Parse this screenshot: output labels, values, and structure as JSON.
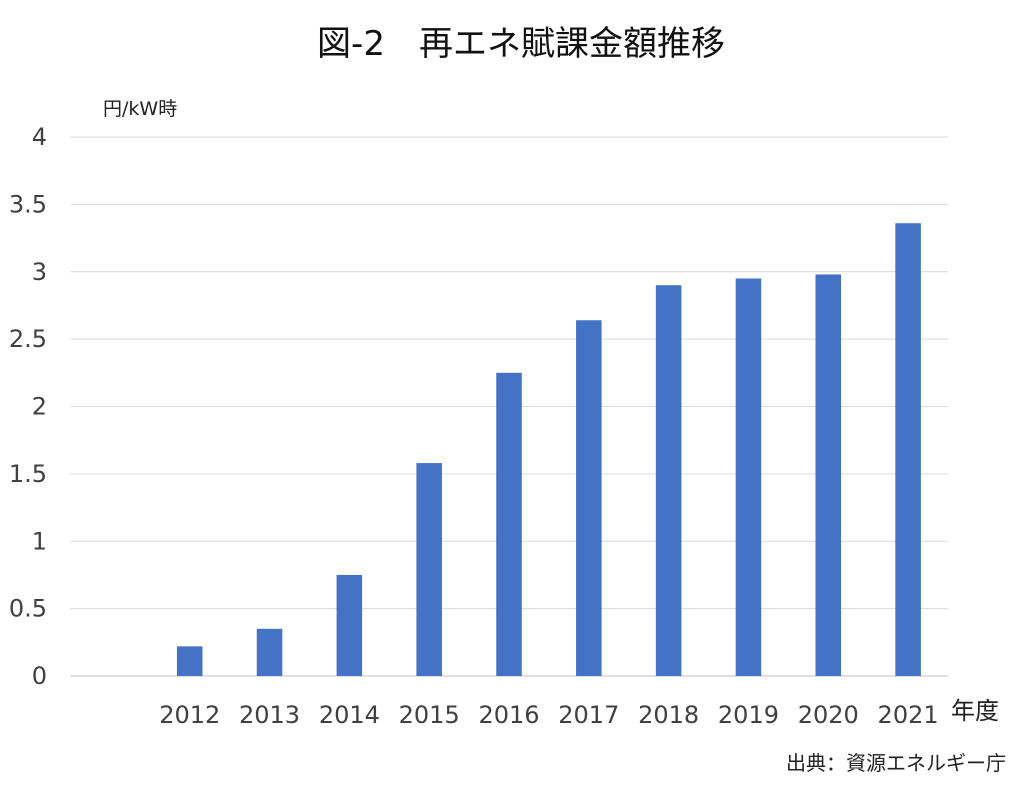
{
  "chart_data": {
    "type": "bar",
    "title": "図-2　再エネ賦課金額推移",
    "ylabel": "円/kW時",
    "xlabel": "年度",
    "source": "出典：資源エネルギー庁",
    "categories": [
      "",
      "2012",
      "2013",
      "2014",
      "2015",
      "2016",
      "2017",
      "2018",
      "2019",
      "2020",
      "2021"
    ],
    "values": [
      null,
      0.22,
      0.35,
      0.75,
      1.58,
      2.25,
      2.64,
      2.9,
      2.95,
      2.98,
      3.36
    ],
    "yticks": [
      "0",
      "0.5",
      "1",
      "1.5",
      "2",
      "2.5",
      "3",
      "3.5",
      "4"
    ],
    "ylim": [
      0,
      4
    ],
    "grid": true,
    "legend": "none",
    "colors": {
      "bar": "#4472C4",
      "grid": "#d9d9d9",
      "axis": "#bfbfbf"
    }
  }
}
